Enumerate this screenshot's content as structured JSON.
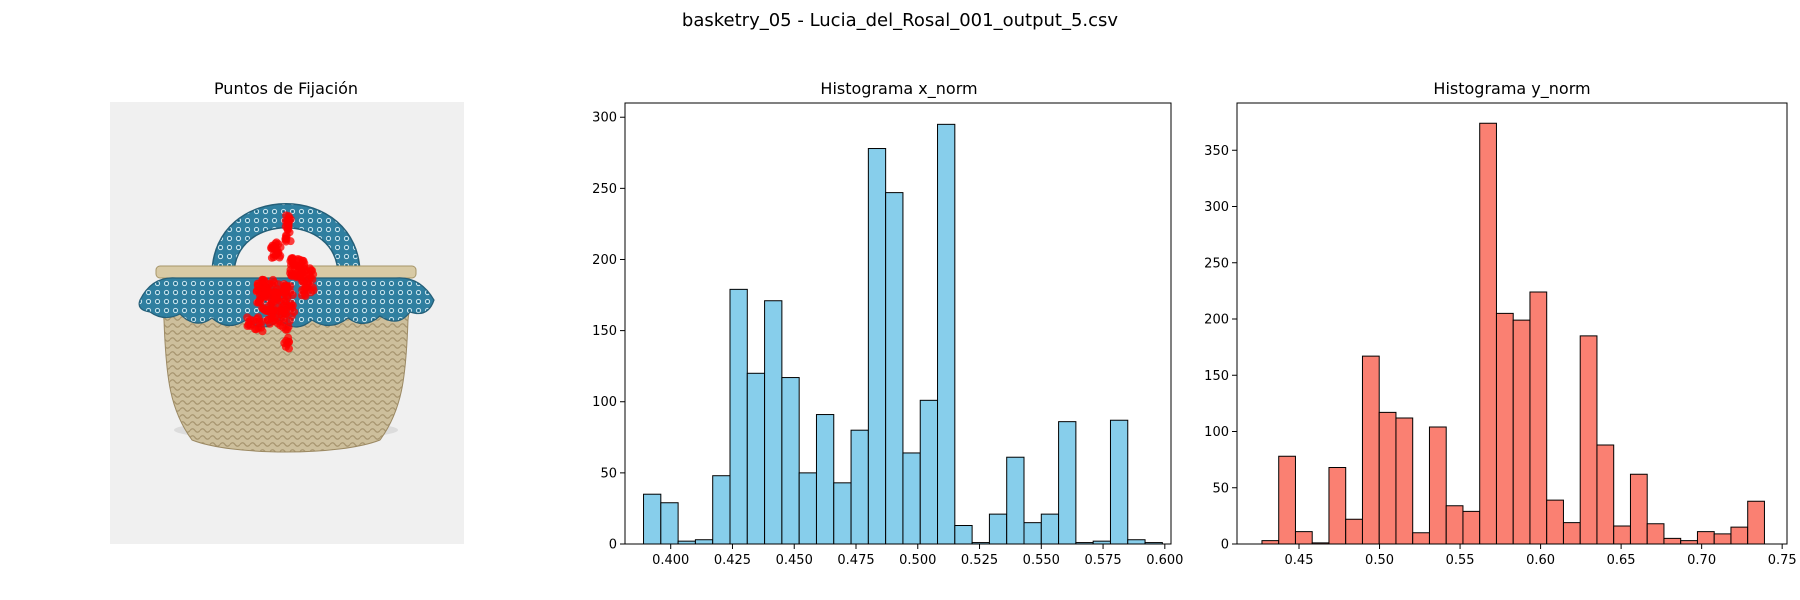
{
  "figure": {
    "title": "basketry_05 - Lucia_del_Rosal_001_output_5.csv"
  },
  "image_panel": {
    "title": "Puntos de Fijación",
    "fixation_color": "#ff0000",
    "background_color": "#f0f0f0"
  },
  "chart_data": [
    {
      "type": "bar",
      "title": "Histograma x_norm",
      "xlabel": "",
      "ylabel": "",
      "color": "#87ceeb",
      "edge_color": "#000000",
      "bin_start": 0.389,
      "bin_width": 0.007,
      "values": [
        35,
        29,
        2,
        3,
        48,
        179,
        120,
        171,
        117,
        50,
        91,
        43,
        80,
        278,
        247,
        64,
        101,
        295,
        13,
        1,
        21,
        61,
        15,
        21,
        86,
        1,
        2,
        87,
        3,
        1
      ],
      "xlim": [
        0.3815,
        0.6025
      ],
      "ylim": [
        0,
        310
      ],
      "xticks": [
        0.4,
        0.425,
        0.45,
        0.475,
        0.5,
        0.525,
        0.55,
        0.575,
        0.6
      ],
      "xtick_labels": [
        "0.400",
        "0.425",
        "0.450",
        "0.475",
        "0.500",
        "0.525",
        "0.550",
        "0.575",
        "0.600"
      ],
      "yticks": [
        0,
        50,
        100,
        150,
        200,
        250,
        300
      ],
      "ytick_labels": [
        "0",
        "50",
        "100",
        "150",
        "200",
        "250",
        "300"
      ]
    },
    {
      "type": "bar",
      "title": "Histograma y_norm",
      "xlabel": "",
      "ylabel": "",
      "color": "#fa8072",
      "edge_color": "#000000",
      "bin_start": 0.427,
      "bin_width": 0.0104,
      "values": [
        3,
        78,
        11,
        1,
        68,
        22,
        167,
        117,
        112,
        10,
        104,
        34,
        29,
        374,
        205,
        199,
        224,
        39,
        19,
        185,
        88,
        16,
        62,
        18,
        5,
        3,
        11,
        9,
        15,
        38
      ],
      "xlim": [
        0.4115,
        0.753
      ],
      "ylim": [
        0,
        392
      ],
      "xticks": [
        0.45,
        0.5,
        0.55,
        0.6,
        0.65,
        0.7,
        0.75
      ],
      "xtick_labels": [
        "0.45",
        "0.50",
        "0.55",
        "0.60",
        "0.65",
        "0.70",
        "0.75"
      ],
      "yticks": [
        0,
        50,
        100,
        150,
        200,
        250,
        300,
        350
      ],
      "ytick_labels": [
        "0",
        "50",
        "100",
        "150",
        "200",
        "250",
        "300",
        "350"
      ]
    }
  ]
}
